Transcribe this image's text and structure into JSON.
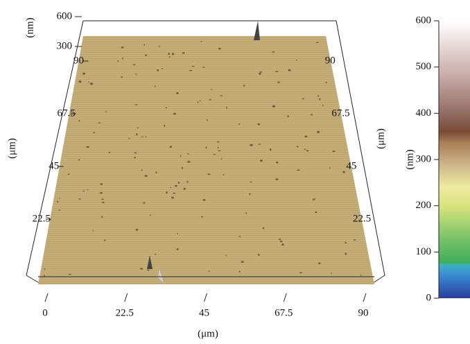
{
  "chart_data": {
    "type": "surface",
    "x_label": "(μm)",
    "y_label": "(μm)",
    "z_label": "(nm)",
    "xlim": [
      0,
      90
    ],
    "xticks": [
      0,
      22.5,
      45,
      67.5,
      90
    ],
    "ylim": [
      0,
      90
    ],
    "yticks": [
      22.5,
      45,
      67.5,
      90
    ],
    "zlim": [
      0,
      600
    ],
    "zticks": [
      300,
      600
    ],
    "colorbar": {
      "label": "(nm)",
      "ylim": [
        0,
        600
      ],
      "yticks": [
        0,
        100,
        200,
        300,
        400,
        500,
        600
      ]
    }
  }
}
